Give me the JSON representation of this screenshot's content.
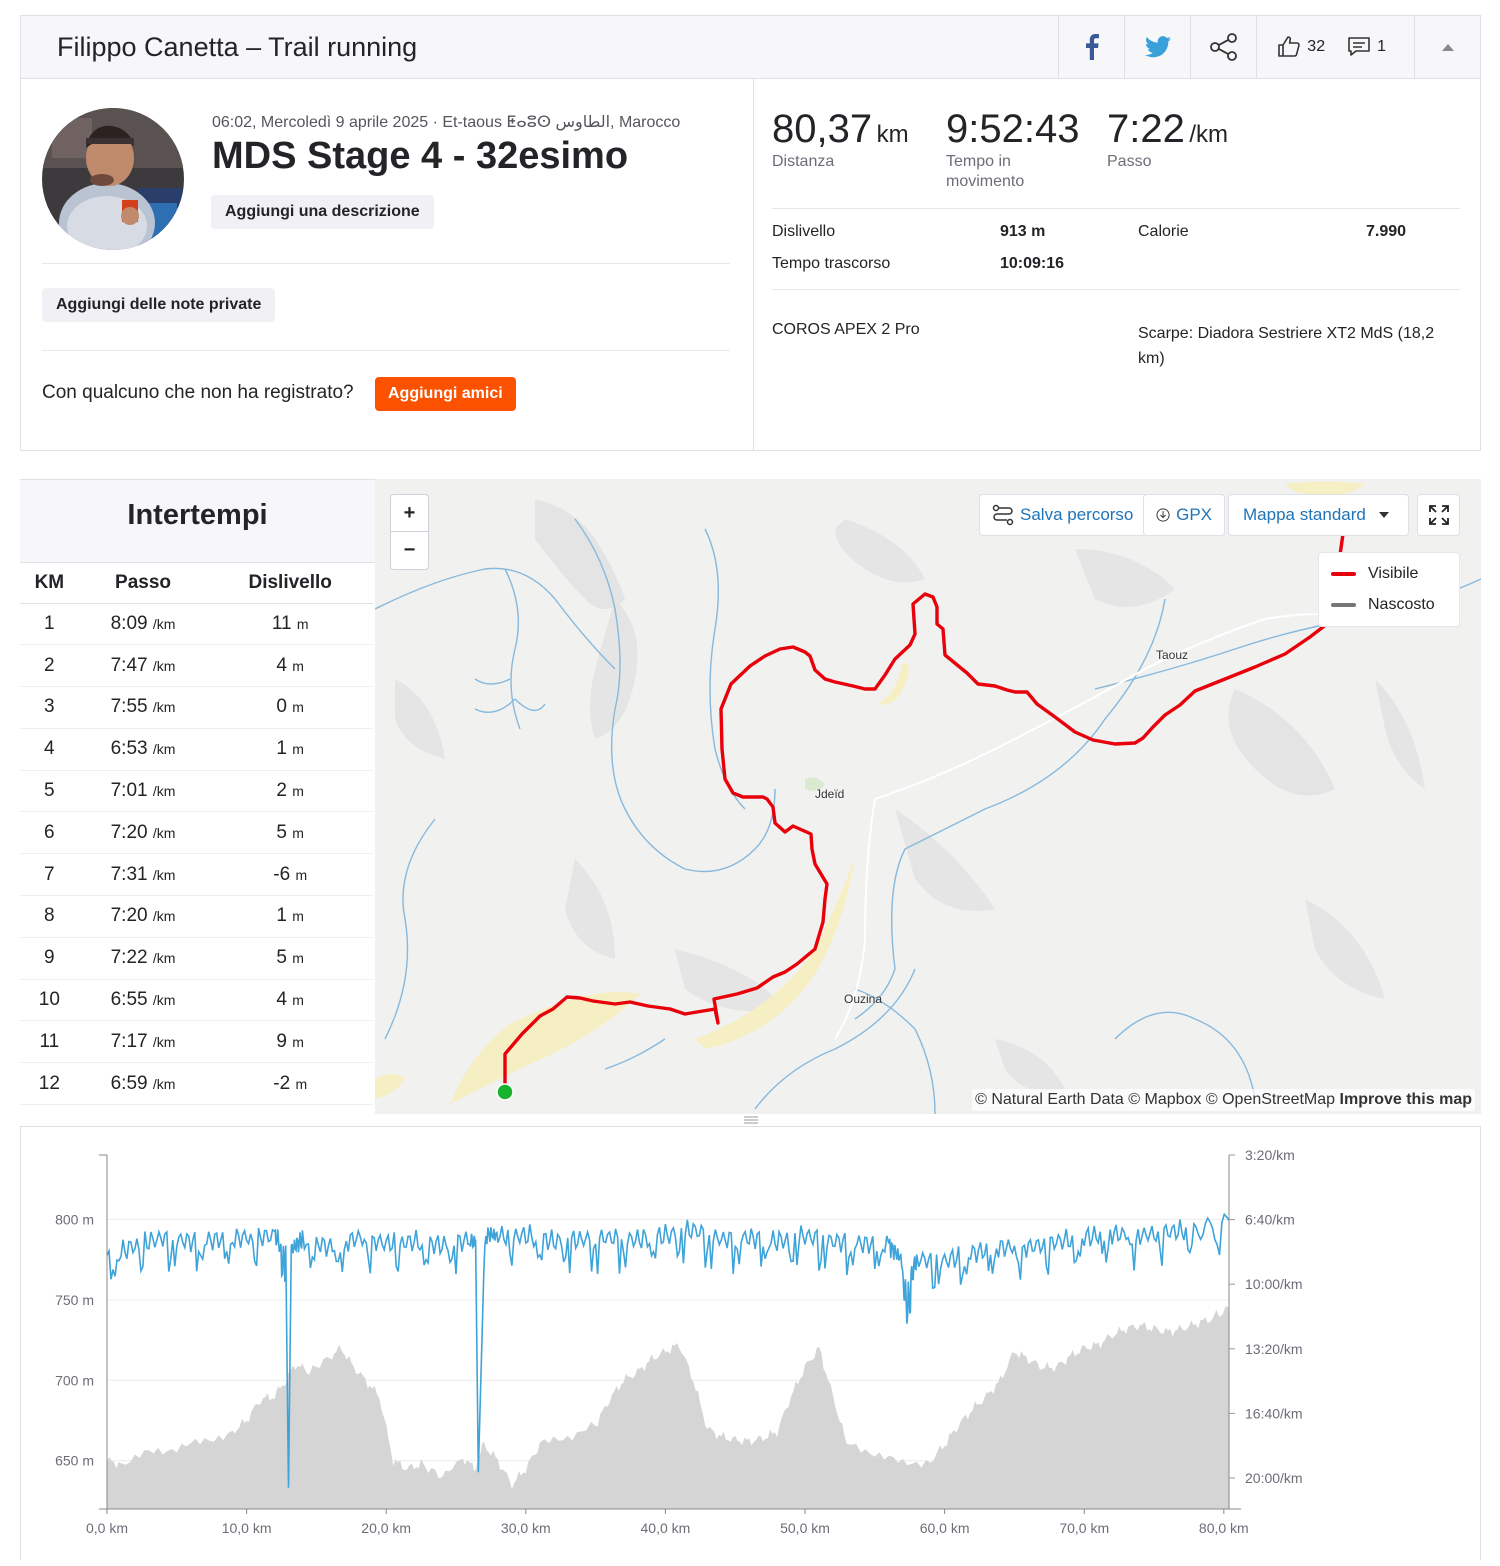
{
  "header": {
    "title": "Filippo Canetta – Trail running",
    "kudos_count": "32",
    "comments_count": "1"
  },
  "activity": {
    "meta": "06:02, Mercoledì 9 aprile 2025 · Et-taous ⵟⴰⵓⵙ الطاوس, Marocco",
    "title": "MDS Stage 4 - 32esimo",
    "add_description": "Aggiungi una descrizione",
    "add_private_notes": "Aggiungi delle note private",
    "friends_question": "Con qualcuno che non ha registrato?",
    "add_friends": "Aggiungi amici"
  },
  "stats": {
    "distance": {
      "value": "80,37",
      "unit": "km",
      "label": "Distanza"
    },
    "moving_time": {
      "value": "9:52:43",
      "label": "Tempo in movimento"
    },
    "pace": {
      "value": "7:22",
      "unit": "/km",
      "label": "Passo"
    },
    "elevation_label": "Dislivello",
    "elevation_value": "913 m",
    "calories_label": "Calorie",
    "calories_value": "7.990",
    "elapsed_label": "Tempo trascorso",
    "elapsed_value": "10:09:16",
    "device": "COROS APEX 2 Pro",
    "shoes": "Scarpe: Diadora Sestriere XT2 MdS (18,2 km)"
  },
  "splits": {
    "title": "Intertempi",
    "headers": [
      "KM",
      "Passo",
      "Dislivello"
    ],
    "pace_unit": "/km",
    "elev_unit": "m",
    "rows": [
      {
        "km": "1",
        "pace": "8:09",
        "elev": "11"
      },
      {
        "km": "2",
        "pace": "7:47",
        "elev": "4"
      },
      {
        "km": "3",
        "pace": "7:55",
        "elev": "0"
      },
      {
        "km": "4",
        "pace": "6:53",
        "elev": "1"
      },
      {
        "km": "5",
        "pace": "7:01",
        "elev": "2"
      },
      {
        "km": "6",
        "pace": "7:20",
        "elev": "5"
      },
      {
        "km": "7",
        "pace": "7:31",
        "elev": "-6"
      },
      {
        "km": "8",
        "pace": "7:20",
        "elev": "1"
      },
      {
        "km": "9",
        "pace": "7:22",
        "elev": "5"
      },
      {
        "km": "10",
        "pace": "6:55",
        "elev": "4"
      },
      {
        "km": "11",
        "pace": "7:17",
        "elev": "9"
      },
      {
        "km": "12",
        "pace": "6:59",
        "elev": "-2"
      }
    ]
  },
  "map": {
    "zoom_in": "+",
    "zoom_out": "−",
    "save_route": "Salva percorso",
    "gpx": "GPX",
    "map_style": "Mappa standard",
    "legend_visible": "Visibile",
    "legend_hidden": "Nascosto",
    "attribution": "© Natural Earth Data © Mapbox © OpenStreetMap",
    "improve": "Improve this map",
    "places": [
      "Taouz",
      "Jdeïd",
      "Ouzina"
    ],
    "route_color": "#e8000b",
    "start_color": "#18b32e"
  },
  "chart_data": {
    "type": "area",
    "x_tick_labels": [
      "0,0 km",
      "10,0 km",
      "20,0 km",
      "30,0 km",
      "40,0 km",
      "50,0 km",
      "60,0 km",
      "70,0 km",
      "80,0 km"
    ],
    "xlim": [
      0,
      80.37
    ],
    "series": [
      {
        "axis": "left",
        "type": "area",
        "color": "#d5d5d5",
        "y_tick_labels": [
          "800 m",
          "750 m",
          "700 m",
          "650 m"
        ],
        "ylim": [
          620,
          840
        ],
        "x": [
          0,
          1,
          3,
          5,
          7,
          9,
          10,
          11,
          12,
          12.8,
          13.5,
          14.5,
          16,
          16.8,
          17.5,
          18.5,
          19.5,
          20.5,
          21.5,
          22.5,
          24,
          25.5,
          26.3,
          27,
          28,
          29,
          30,
          31,
          33,
          35,
          36,
          37,
          38,
          39,
          40,
          41,
          42,
          43,
          44,
          45,
          46,
          47,
          48,
          49,
          50,
          51,
          52,
          53,
          55,
          57,
          59,
          60,
          61,
          62,
          63,
          64,
          65,
          66,
          67,
          68,
          69,
          70,
          71,
          72,
          73,
          74,
          75,
          76,
          77,
          78,
          79,
          80.37
        ],
        "y": [
          650,
          648,
          655,
          658,
          662,
          668,
          675,
          688,
          690,
          700,
          710,
          705,
          715,
          720,
          710,
          700,
          690,
          650,
          645,
          648,
          640,
          652,
          645,
          660,
          650,
          635,
          645,
          660,
          665,
          672,
          688,
          700,
          705,
          713,
          718,
          722,
          700,
          670,
          665,
          663,
          662,
          664,
          668,
          690,
          708,
          720,
          690,
          660,
          655,
          648,
          650,
          660,
          672,
          682,
          690,
          700,
          718,
          713,
          708,
          708,
          715,
          720,
          722,
          728,
          732,
          734,
          732,
          730,
          732,
          735,
          738,
          745
        ]
      },
      {
        "axis": "right",
        "type": "line",
        "color": "#3ea3d9",
        "unit": "min/km",
        "y_tick_labels": [
          "3:20/km",
          "6:40/km",
          "10:00/km",
          "13:20/km",
          "16:40/km",
          "20:00/km"
        ],
        "ylim": [
          3.333,
          21.6
        ],
        "x": [
          0,
          2,
          4,
          6,
          8,
          10,
          12,
          12.8,
          13,
          13.2,
          14,
          16,
          18,
          20,
          22,
          24,
          26,
          26.4,
          26.6,
          27,
          28,
          30,
          32,
          34,
          36,
          38,
          40,
          42,
          44,
          46,
          48,
          50,
          52,
          54,
          56,
          57,
          57.3,
          58,
          60,
          62,
          64,
          66,
          68,
          70,
          72,
          74,
          76,
          78,
          80.37
        ],
        "y": [
          8.5,
          7.8,
          7.4,
          7.6,
          7.5,
          7.4,
          7.3,
          8.0,
          20.5,
          8.0,
          7.5,
          7.9,
          7.4,
          7.7,
          7.6,
          7.8,
          7.5,
          7.7,
          19.7,
          7.2,
          7.3,
          7.3,
          7.6,
          7.5,
          7.4,
          7.5,
          7.3,
          7.0,
          7.5,
          7.4,
          7.6,
          7.3,
          7.6,
          7.7,
          7.8,
          8.6,
          10.2,
          8.5,
          8.6,
          8.2,
          7.9,
          7.9,
          7.6,
          7.4,
          7.2,
          7.3,
          7.1,
          7.0,
          6.7
        ]
      }
    ]
  }
}
